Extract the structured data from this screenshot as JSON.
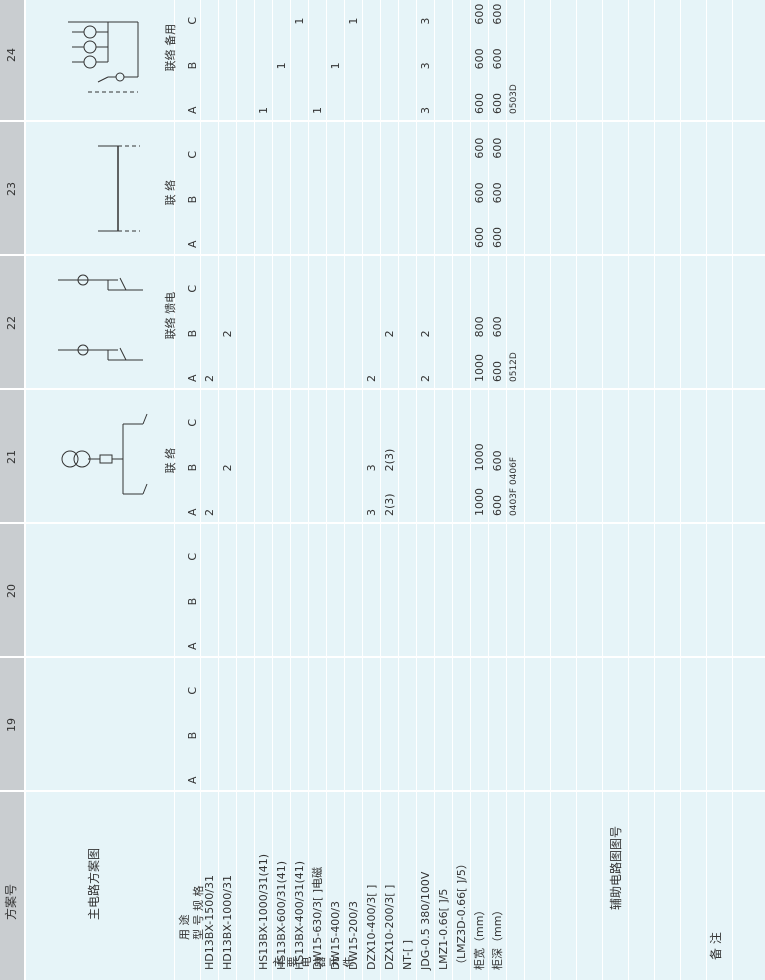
{
  "header": {
    "label": "方案号",
    "plans": [
      "19",
      "20",
      "21",
      "22",
      "23",
      "24"
    ]
  },
  "left_labels": {
    "main_circuit": "主电路方案图",
    "purpose": "用    途",
    "model_spec": "型 号 规 格",
    "main_elements": "主要电器元件",
    "items": [
      "HD13BX-1500/31",
      "HD13BX-1000/31",
      "",
      "HS13BX-1000/31(41)",
      "HS13BX-600/31(41)",
      "HS13BX-400/31(41)",
      "DW15-630/3[ ]电磁",
      "DW15-400/3",
      "DW15-200/3",
      "DZX10-400/3[ ]",
      "DZX10-200/3[ ]",
      "NT-[ ]",
      "JDG-0.5  380/100V",
      "LMZ1-0.66[ ]/5",
      "（LMZ3D-0.66[ ]/5）",
      "柜宽（mm）",
      "柜深（mm）",
      ""
    ],
    "aux": "辅助电路图图号",
    "remarks": "备    注"
  },
  "phases": [
    "A",
    "B",
    "C"
  ],
  "columns": [
    {
      "plan": "19",
      "purpose": "",
      "cells": {},
      "width": [
        "",
        "",
        ""
      ],
      "depth": [
        "",
        "",
        ""
      ],
      "aux": ""
    },
    {
      "plan": "20",
      "purpose": "",
      "cells": {},
      "width": [
        "",
        "",
        ""
      ],
      "depth": [
        "",
        "",
        ""
      ],
      "aux": ""
    },
    {
      "plan": "21",
      "purpose": "联   络",
      "cells": {
        "0": [
          "2",
          "",
          ""
        ],
        "1": [
          "",
          "2",
          ""
        ],
        "9": [
          "3",
          "3",
          ""
        ],
        "10": [
          "2(3)",
          "2(3)",
          ""
        ]
      },
      "width": [
        "1000",
        "1000",
        ""
      ],
      "depth": [
        "600",
        "600",
        ""
      ],
      "aux": "0403F 0406F"
    },
    {
      "plan": "22",
      "purpose": "联络  馈电",
      "cells": {
        "0": [
          "2",
          "",
          ""
        ],
        "1": [
          "",
          "2",
          ""
        ],
        "9": [
          "2",
          "",
          ""
        ],
        "10": [
          "",
          "2",
          ""
        ],
        "12": [
          "2",
          "2",
          ""
        ]
      },
      "width": [
        "1000",
        "800",
        ""
      ],
      "depth": [
        "600",
        "600",
        ""
      ],
      "aux": "0512D"
    },
    {
      "plan": "23",
      "purpose": "联   络",
      "cells": {},
      "width": [
        "600",
        "600",
        "600"
      ],
      "depth": [
        "600",
        "600",
        "600"
      ],
      "aux": ""
    },
    {
      "plan": "24",
      "purpose": "联络  备用",
      "cells": {
        "3": [
          "1",
          "",
          ""
        ],
        "4": [
          "",
          "1",
          ""
        ],
        "5": [
          "",
          "",
          "1"
        ],
        "6": [
          "1",
          "",
          ""
        ],
        "7": [
          "",
          "1",
          ""
        ],
        "8": [
          "",
          "",
          "1"
        ],
        "12": [
          "3",
          "3",
          "3"
        ]
      },
      "width": [
        "600",
        "600",
        "600"
      ],
      "depth": [
        "600",
        "600",
        "600"
      ],
      "aux": "0503D"
    }
  ]
}
